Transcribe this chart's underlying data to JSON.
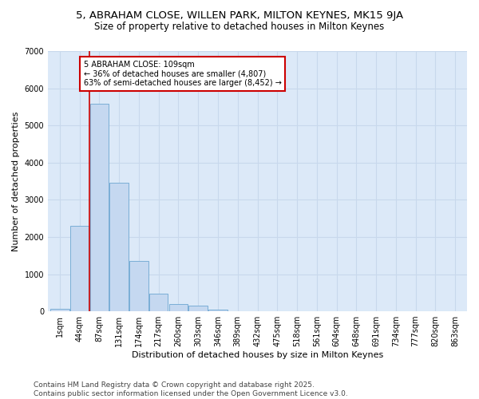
{
  "title_line1": "5, ABRAHAM CLOSE, WILLEN PARK, MILTON KEYNES, MK15 9JA",
  "title_line2": "Size of property relative to detached houses in Milton Keynes",
  "xlabel": "Distribution of detached houses by size in Milton Keynes",
  "ylabel": "Number of detached properties",
  "bins": [
    "1sqm",
    "44sqm",
    "87sqm",
    "131sqm",
    "174sqm",
    "217sqm",
    "260sqm",
    "303sqm",
    "346sqm",
    "389sqm",
    "432sqm",
    "475sqm",
    "518sqm",
    "561sqm",
    "604sqm",
    "648sqm",
    "691sqm",
    "734sqm",
    "777sqm",
    "820sqm",
    "863sqm"
  ],
  "values": [
    75,
    2300,
    5580,
    3450,
    1350,
    475,
    195,
    150,
    50,
    0,
    0,
    0,
    0,
    0,
    0,
    0,
    0,
    0,
    0,
    0,
    0
  ],
  "bar_color": "#c5d8f0",
  "bar_edge_color": "#7aaed6",
  "property_bin_index": 2,
  "vline_color": "#cc0000",
  "annotation_text": "5 ABRAHAM CLOSE: 109sqm\n← 36% of detached houses are smaller (4,807)\n63% of semi-detached houses are larger (8,452) →",
  "annotation_box_color": "#ffffff",
  "annotation_box_edge": "#cc0000",
  "ylim": [
    0,
    7000
  ],
  "yticks": [
    0,
    1000,
    2000,
    3000,
    4000,
    5000,
    6000,
    7000
  ],
  "grid_color": "#c8d8ec",
  "background_color": "#ffffff",
  "plot_bg_color": "#dce9f8",
  "footer_line1": "Contains HM Land Registry data © Crown copyright and database right 2025.",
  "footer_line2": "Contains public sector information licensed under the Open Government Licence v3.0.",
  "title_fontsize": 9.5,
  "subtitle_fontsize": 8.5,
  "axis_label_fontsize": 8,
  "tick_fontsize": 7,
  "annotation_fontsize": 7,
  "footer_fontsize": 6.5
}
